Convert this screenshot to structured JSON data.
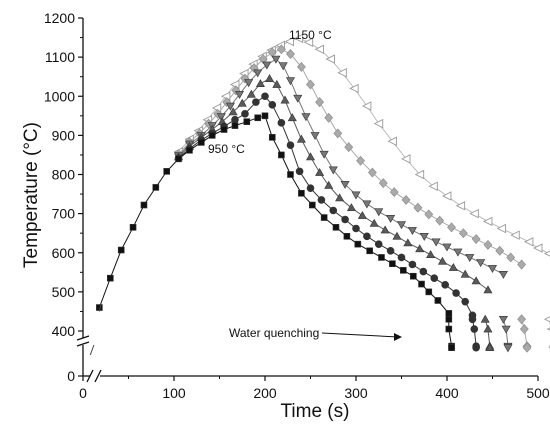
{
  "chart_data": {
    "type": "scatter",
    "xlabel": "Time (s)",
    "ylabel": "Temperature (°C)",
    "xlim": [
      0,
      500
    ],
    "x_ticks": [
      "0",
      "100",
      "200",
      "300",
      "400",
      "500"
    ],
    "y_ticks": [
      "0",
      "400",
      "500",
      "600",
      "700",
      "800",
      "900",
      "1000",
      "1100",
      "1200"
    ],
    "y_axis_break": [
      0,
      400
    ],
    "x_axis_break": [
      0,
      10
    ],
    "annotations": [
      "1150 °C",
      "950 °C",
      "Water quenching"
    ],
    "series": [
      {
        "color": "#111111",
        "marker": "square",
        "heating": [
          [
            18,
            460
          ],
          [
            30,
            535
          ],
          [
            42,
            607
          ],
          [
            55,
            665
          ],
          [
            67,
            722
          ],
          [
            80,
            767
          ],
          [
            92,
            808
          ],
          [
            105,
            840
          ],
          [
            117,
            862
          ],
          [
            130,
            882
          ],
          [
            142,
            900
          ],
          [
            155,
            915
          ],
          [
            167,
            925
          ],
          [
            180,
            935
          ],
          [
            192,
            945
          ],
          [
            200,
            950
          ]
        ],
        "cooling": [
          [
            208,
            895
          ],
          [
            218,
            850
          ],
          [
            228,
            800
          ],
          [
            240,
            752
          ],
          [
            252,
            722
          ],
          [
            265,
            690
          ],
          [
            278,
            665
          ],
          [
            290,
            642
          ],
          [
            302,
            622
          ],
          [
            315,
            605
          ],
          [
            328,
            588
          ],
          [
            340,
            572
          ],
          [
            352,
            555
          ],
          [
            363,
            540
          ],
          [
            372,
            520
          ],
          [
            380,
            500
          ],
          [
            390,
            478
          ],
          [
            402,
            445
          ]
        ],
        "quench": [
          [
            402,
            430
          ],
          [
            402,
            405
          ],
          [
            405,
            385
          ],
          [
            405,
            365
          ]
        ]
      },
      {
        "color": "#333333",
        "marker": "circle",
        "heating": [
          [
            105,
            842
          ],
          [
            117,
            866
          ],
          [
            130,
            888
          ],
          [
            142,
            905
          ],
          [
            155,
            923
          ],
          [
            167,
            940
          ],
          [
            178,
            955
          ],
          [
            190,
            985
          ],
          [
            200,
            1000
          ]
        ],
        "cooling": [
          [
            208,
            978
          ],
          [
            218,
            932
          ],
          [
            228,
            875
          ],
          [
            238,
            808
          ],
          [
            250,
            765
          ],
          [
            262,
            735
          ],
          [
            275,
            708
          ],
          [
            288,
            685
          ],
          [
            300,
            662
          ],
          [
            312,
            642
          ],
          [
            325,
            622
          ],
          [
            338,
            605
          ],
          [
            350,
            588
          ],
          [
            362,
            570
          ],
          [
            374,
            552
          ],
          [
            386,
            535
          ],
          [
            398,
            518
          ],
          [
            410,
            497
          ],
          [
            420,
            475
          ],
          [
            428,
            440
          ]
        ],
        "quench": [
          [
            428,
            430
          ],
          [
            430,
            405
          ],
          [
            432,
            385
          ],
          [
            432,
            365
          ]
        ]
      },
      {
        "color": "#5a5a5a",
        "marker": "triangle-up",
        "heating": [
          [
            105,
            845
          ],
          [
            117,
            872
          ],
          [
            130,
            895
          ],
          [
            142,
            915
          ],
          [
            153,
            935
          ],
          [
            165,
            960
          ],
          [
            175,
            982
          ],
          [
            185,
            1005
          ],
          [
            195,
            1032
          ],
          [
            205,
            1045
          ]
        ],
        "cooling": [
          [
            213,
            1030
          ],
          [
            222,
            990
          ],
          [
            230,
            945
          ],
          [
            240,
            890
          ],
          [
            250,
            845
          ],
          [
            260,
            805
          ],
          [
            270,
            772
          ],
          [
            282,
            740
          ],
          [
            295,
            715
          ],
          [
            307,
            695
          ],
          [
            320,
            675
          ],
          [
            332,
            658
          ],
          [
            345,
            642
          ],
          [
            357,
            625
          ],
          [
            370,
            610
          ],
          [
            382,
            595
          ],
          [
            395,
            578
          ],
          [
            407,
            562
          ],
          [
            420,
            545
          ],
          [
            432,
            528
          ],
          [
            445,
            505
          ]
        ],
        "quench": [
          [
            442,
            430
          ],
          [
            445,
            405
          ],
          [
            447,
            385
          ],
          [
            447,
            365
          ]
        ]
      },
      {
        "color": "#777777",
        "marker": "triangle-down",
        "heating": [
          [
            105,
            848
          ],
          [
            117,
            878
          ],
          [
            130,
            900
          ],
          [
            142,
            925
          ],
          [
            152,
            948
          ],
          [
            162,
            975
          ],
          [
            172,
            1005
          ],
          [
            182,
            1035
          ],
          [
            192,
            1060
          ],
          [
            202,
            1080
          ],
          [
            212,
            1095
          ]
        ],
        "cooling": [
          [
            220,
            1078
          ],
          [
            228,
            1040
          ],
          [
            236,
            995
          ],
          [
            245,
            948
          ],
          [
            255,
            900
          ],
          [
            265,
            852
          ],
          [
            275,
            812
          ],
          [
            288,
            775
          ],
          [
            300,
            748
          ],
          [
            312,
            725
          ],
          [
            325,
            705
          ],
          [
            338,
            688
          ],
          [
            350,
            672
          ],
          [
            362,
            657
          ],
          [
            375,
            642
          ],
          [
            388,
            628
          ],
          [
            400,
            615
          ],
          [
            412,
            602
          ],
          [
            425,
            588
          ],
          [
            437,
            575
          ],
          [
            450,
            560
          ],
          [
            462,
            545
          ]
        ],
        "quench": [
          [
            462,
            430
          ],
          [
            465,
            405
          ],
          [
            467,
            385
          ],
          [
            467,
            365
          ]
        ]
      },
      {
        "color": "#aaaaaa",
        "marker": "diamond",
        "heating": [
          [
            105,
            852
          ],
          [
            117,
            883
          ],
          [
            128,
            905
          ],
          [
            138,
            930
          ],
          [
            148,
            955
          ],
          [
            158,
            985
          ],
          [
            168,
            1015
          ],
          [
            178,
            1045
          ],
          [
            188,
            1072
          ],
          [
            198,
            1095
          ],
          [
            208,
            1112
          ],
          [
            218,
            1120
          ]
        ],
        "cooling": [
          [
            228,
            1108
          ],
          [
            240,
            1075
          ],
          [
            250,
            1030
          ],
          [
            260,
            985
          ],
          [
            270,
            945
          ],
          [
            280,
            905
          ],
          [
            292,
            870
          ],
          [
            305,
            835
          ],
          [
            318,
            805
          ],
          [
            330,
            778
          ],
          [
            342,
            755
          ],
          [
            355,
            735
          ],
          [
            368,
            715
          ],
          [
            380,
            698
          ],
          [
            392,
            682
          ],
          [
            405,
            665
          ],
          [
            418,
            650
          ],
          [
            432,
            635
          ],
          [
            445,
            620
          ],
          [
            458,
            605
          ],
          [
            470,
            588
          ],
          [
            482,
            570
          ]
        ],
        "quench": [
          [
            482,
            430
          ],
          [
            485,
            405
          ],
          [
            488,
            385
          ],
          [
            488,
            365
          ]
        ]
      },
      {
        "color": "#cccccc",
        "marker": "triangle-left",
        "heating": [
          [
            105,
            858
          ],
          [
            117,
            890
          ],
          [
            127,
            912
          ],
          [
            137,
            940
          ],
          [
            147,
            970
          ],
          [
            157,
            1000
          ],
          [
            167,
            1030
          ],
          [
            177,
            1058
          ],
          [
            187,
            1082
          ],
          [
            197,
            1102
          ],
          [
            207,
            1118
          ],
          [
            217,
            1130
          ],
          [
            227,
            1140
          ],
          [
            237,
            1148
          ]
        ],
        "cooling": [
          [
            248,
            1138
          ],
          [
            260,
            1120
          ],
          [
            272,
            1095
          ],
          [
            285,
            1060
          ],
          [
            298,
            1020
          ],
          [
            312,
            975
          ],
          [
            325,
            930
          ],
          [
            340,
            885
          ],
          [
            355,
            840
          ],
          [
            370,
            800
          ],
          [
            385,
            770
          ],
          [
            400,
            745
          ],
          [
            415,
            720
          ],
          [
            430,
            700
          ],
          [
            445,
            680
          ],
          [
            460,
            662
          ],
          [
            475,
            645
          ],
          [
            490,
            628
          ],
          [
            500,
            612
          ],
          [
            512,
            598
          ]
        ],
        "quench": [
          [
            512,
            430
          ],
          [
            515,
            405
          ],
          [
            517,
            385
          ],
          [
            517,
            365
          ]
        ]
      }
    ]
  }
}
